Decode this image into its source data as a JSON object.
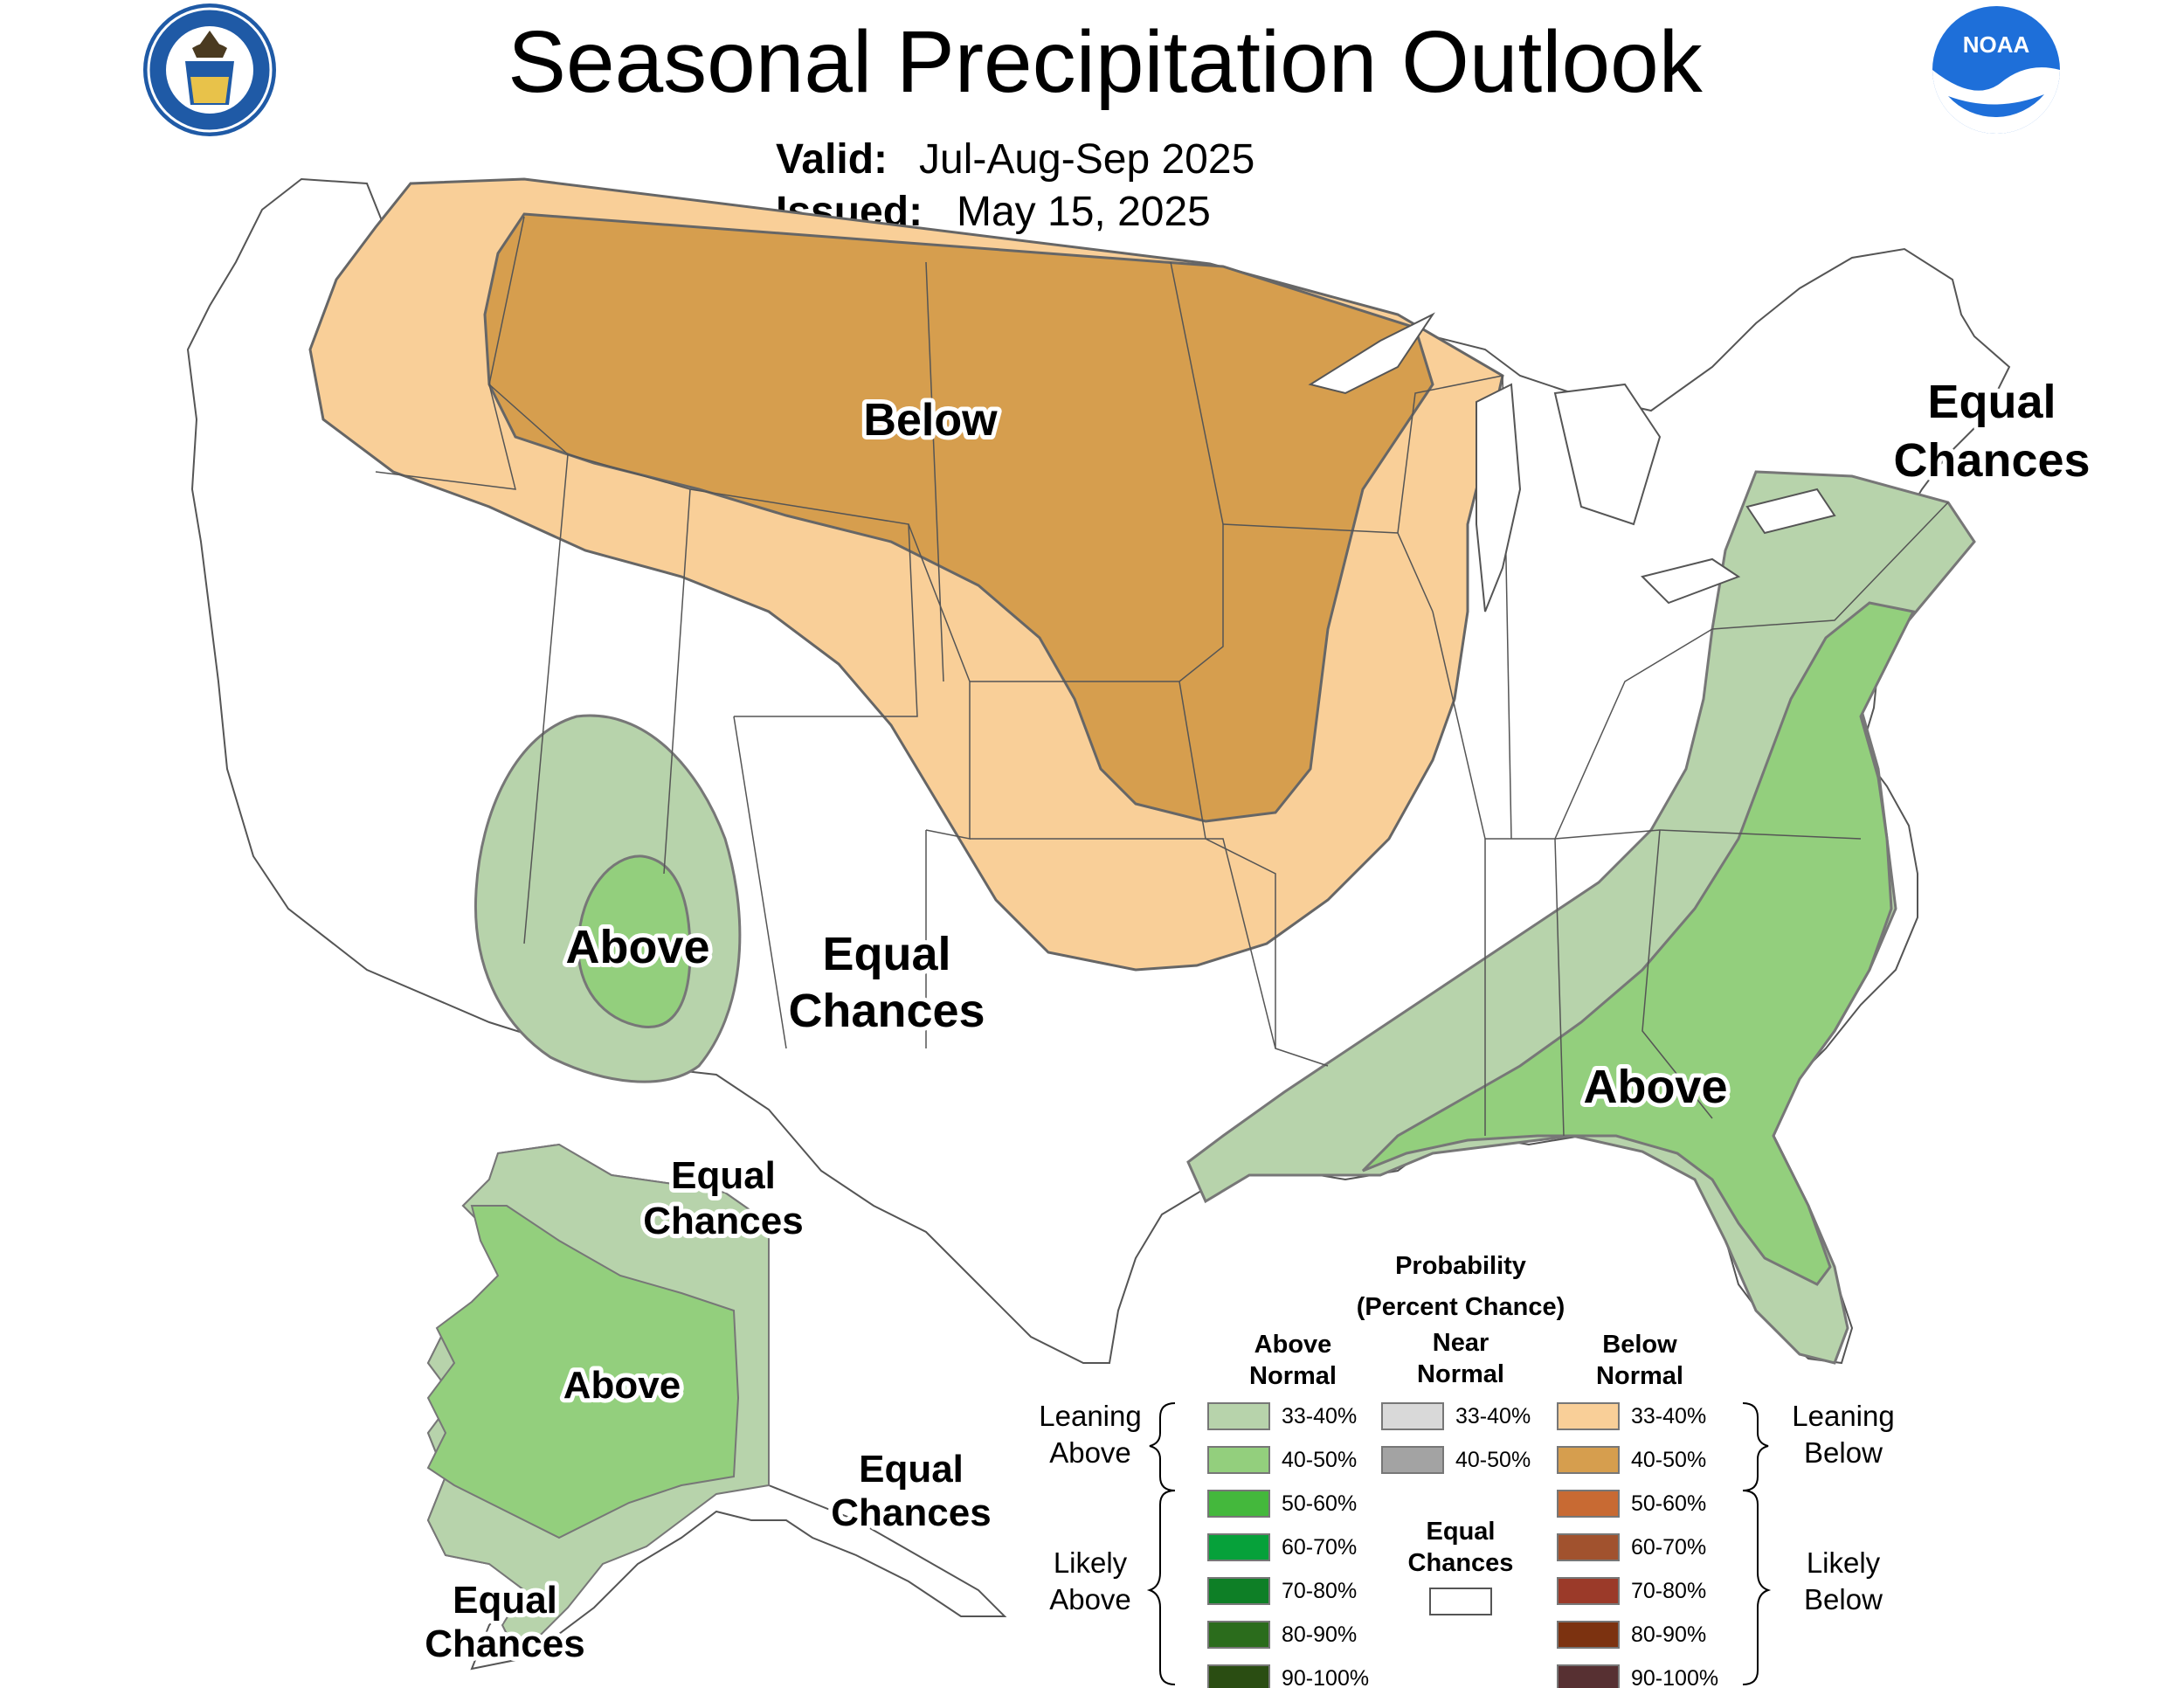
{
  "header": {
    "title": "Seasonal Precipitation Outlook",
    "valid_label": "Valid:",
    "valid_value": "Jul-Aug-Sep 2025",
    "issued_label": "Issued:",
    "issued_value": "May 15, 2025"
  },
  "logos": {
    "commerce_seal_text": "DEPARTMENT OF COMMERCE · UNITED STATES OF AMERICA",
    "noaa_text": "NOAA"
  },
  "map_labels": {
    "below": "Below",
    "above_southwest": "Above",
    "above_southeast": "Above",
    "equal_central_line1": "Equal",
    "equal_central_line2": "Chances",
    "equal_northeast_line1": "Equal",
    "equal_northeast_line2": "Chances",
    "alaska_above": "Above",
    "alaska_equal_north_line1": "Equal",
    "alaska_equal_north_line2": "Chances",
    "alaska_equal_southeast_line1": "Equal",
    "alaska_equal_southeast_line2": "Chances",
    "alaska_equal_southwest_line1": "Equal",
    "alaska_equal_southwest_line2": "Chances"
  },
  "legend": {
    "title_line1": "Probability",
    "title_line2": "(Percent Chance)",
    "above_head_line1": "Above",
    "above_head_line2": "Normal",
    "near_head_line1": "Near",
    "near_head_line2": "Normal",
    "below_head_line1": "Below",
    "below_head_line2": "Normal",
    "leaning_above_line1": "Leaning",
    "leaning_above_line2": "Above",
    "likely_above_line1": "Likely",
    "likely_above_line2": "Above",
    "leaning_below_line1": "Leaning",
    "leaning_below_line2": "Below",
    "likely_below_line1": "Likely",
    "likely_below_line2": "Below",
    "equal_chances_line1": "Equal",
    "equal_chances_line2": "Chances",
    "above": [
      {
        "label": "33-40%",
        "color": "#b7d3ab"
      },
      {
        "label": "40-50%",
        "color": "#93cf7d"
      },
      {
        "label": "50-60%",
        "color": "#44b83c"
      },
      {
        "label": "60-70%",
        "color": "#06a13a"
      },
      {
        "label": "70-80%",
        "color": "#0e7f26"
      },
      {
        "label": "80-90%",
        "color": "#2b6c1c"
      },
      {
        "label": "90-100%",
        "color": "#2a4d12"
      }
    ],
    "near": [
      {
        "label": "33-40%",
        "color": "#d9d9d9"
      },
      {
        "label": "40-50%",
        "color": "#a3a3a3"
      }
    ],
    "below": [
      {
        "label": "33-40%",
        "color": "#f9cf98"
      },
      {
        "label": "40-50%",
        "color": "#d69e4e"
      },
      {
        "label": "50-60%",
        "color": "#c86a33"
      },
      {
        "label": "60-70%",
        "color": "#a1522e"
      },
      {
        "label": "70-80%",
        "color": "#9b3a29"
      },
      {
        "label": "80-90%",
        "color": "#7c3210"
      },
      {
        "label": "90-100%",
        "color": "#573032"
      }
    ]
  }
}
